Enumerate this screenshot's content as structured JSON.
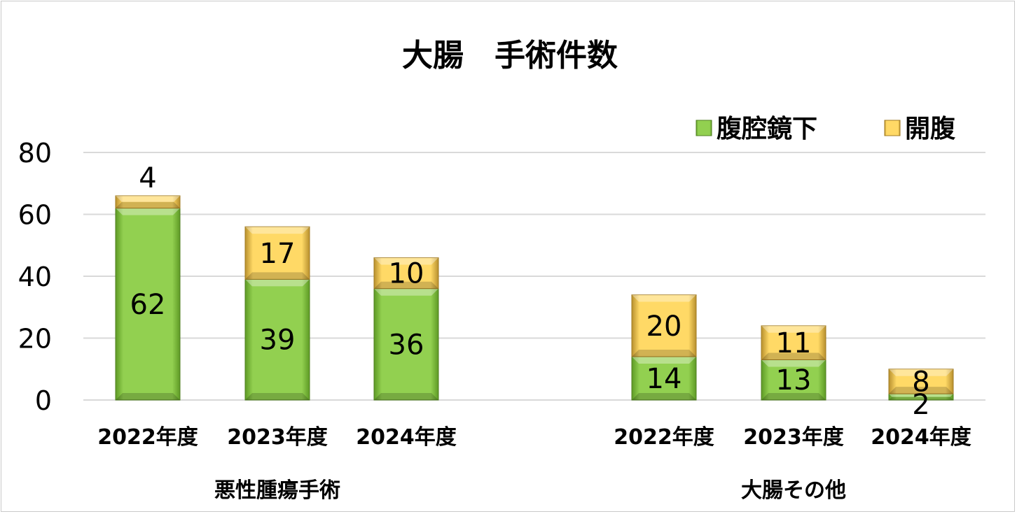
{
  "chart_data": {
    "type": "bar",
    "stacked": true,
    "title": "大腸　手術件数",
    "ylim": [
      0,
      80
    ],
    "yticks": [
      0,
      20,
      40,
      60,
      80
    ],
    "grid": true,
    "legend_position": "top-right",
    "groups": [
      {
        "label": "悪性腫瘍手術",
        "categories": [
          "2022年度",
          "2023年度",
          "2024年度"
        ]
      },
      {
        "label": "大腸その他",
        "categories": [
          "2022年度",
          "2023年度",
          "2024年度"
        ]
      }
    ],
    "series": [
      {
        "name": "腹腔鏡下",
        "color": "#92d050",
        "values": [
          62,
          39,
          36,
          14,
          13,
          2
        ]
      },
      {
        "name": "開腹",
        "color": "#ffd966",
        "values": [
          4,
          17,
          10,
          20,
          11,
          8
        ]
      }
    ]
  }
}
